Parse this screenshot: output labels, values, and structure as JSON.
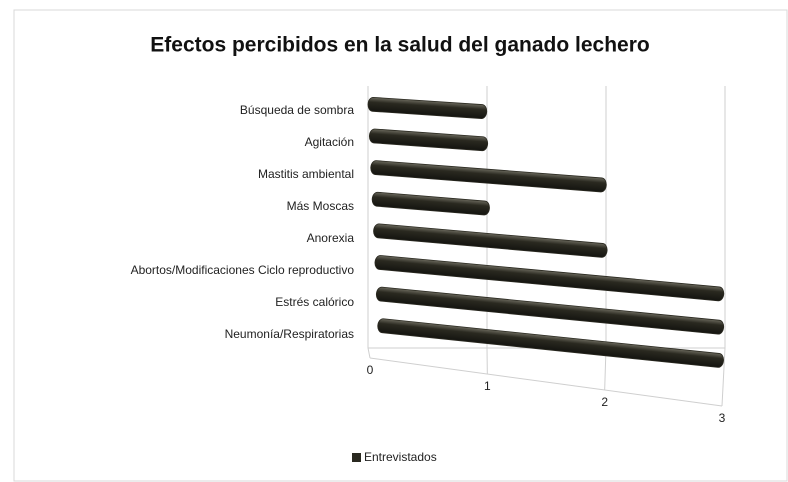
{
  "chart_data": {
    "type": "bar",
    "orientation": "horizontal",
    "title": "Efectos percibidos en la salud del ganado lechero",
    "categories": [
      "Búsqueda de sombra",
      "Agitación",
      "Mastitis ambiental",
      "Más Moscas",
      "Anorexia",
      "Abortos/Modificaciones Ciclo reproductivo",
      "Estrés calórico",
      "Neumonía/Respiratorias"
    ],
    "series": [
      {
        "name": "Entrevistados",
        "color": "#2a2920",
        "values": [
          1,
          1,
          2,
          1,
          2,
          3,
          3,
          3
        ]
      }
    ],
    "xlim": [
      0,
      3
    ],
    "xticks": [
      0,
      1,
      2,
      3
    ],
    "grid": true,
    "legend": "bottom"
  }
}
